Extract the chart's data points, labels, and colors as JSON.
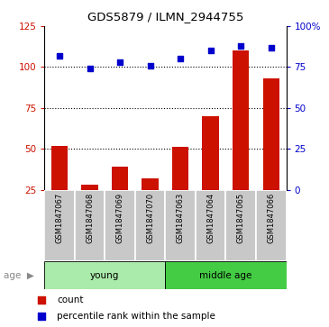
{
  "title": "GDS5879 / ILMN_2944755",
  "samples": [
    "GSM1847067",
    "GSM1847068",
    "GSM1847069",
    "GSM1847070",
    "GSM1847063",
    "GSM1847064",
    "GSM1847065",
    "GSM1847066"
  ],
  "counts": [
    52,
    28,
    39,
    32,
    51,
    70,
    110,
    93
  ],
  "percentiles": [
    82,
    74,
    78,
    76,
    80,
    85,
    88,
    87
  ],
  "groups": [
    {
      "label": "young",
      "start": 0,
      "end": 4,
      "color": "#AAEAAA"
    },
    {
      "label": "middle age",
      "start": 4,
      "end": 8,
      "color": "#44CC44"
    }
  ],
  "bar_color": "#CC1100",
  "dot_color": "#0000CC",
  "sample_bg": "#C8C8C8",
  "ylim_left": [
    25,
    125
  ],
  "ylim_right": [
    0,
    100
  ],
  "yticks_left": [
    25,
    50,
    75,
    100,
    125
  ],
  "ytick_labels_left": [
    "25",
    "50",
    "75",
    "100",
    "125"
  ],
  "yticks_right": [
    0,
    25,
    50,
    75,
    100
  ],
  "ytick_labels_right": [
    "0",
    "25",
    "50",
    "75",
    "100%"
  ],
  "grid_values": [
    50,
    75,
    100
  ],
  "legend_count": "count",
  "legend_pct": "percentile rank within the sample",
  "figsize": [
    3.65,
    3.63
  ],
  "dpi": 100
}
